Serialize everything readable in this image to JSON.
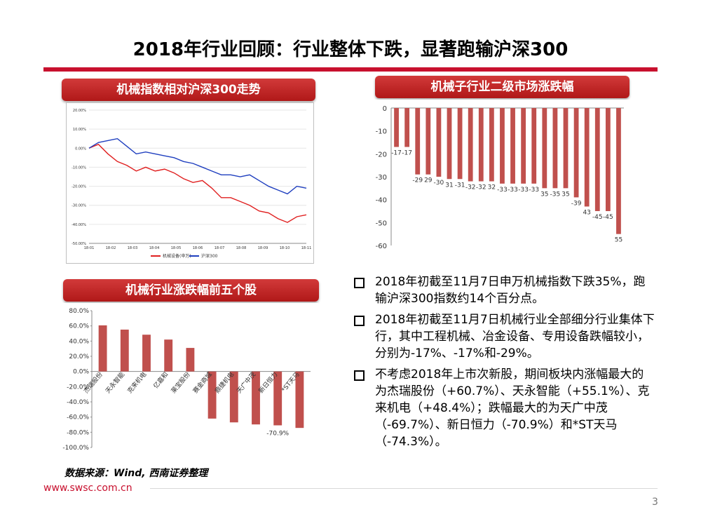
{
  "title": "2018年行业回顾：行业整体下跌，显著跑输沪深300",
  "panels": {
    "index_trend": "机械指数相对沪深300走势",
    "sub_industry": "机械子行业二级市场涨跌幅",
    "top_stocks": "机械行业涨跌幅前五个股"
  },
  "bullets": [
    "2018年初截至11月7日申万机械指数下跌35%，跑输沪深300指数约14个百分点。",
    "2018年初截至11月7日机械行业全部细分行业集体下行，其中工程机械、冶金设备、专用设备跌幅较小，分别为-17%、-17%和-29%。",
    "不考虑2018年上市次新股，期间板块内涨幅最大的为杰瑞股份（+60.7%）、天永智能（+55.1%）、克来机电（+48.4%）；跌幅最大的为天广中茂（-69.7%）、新日恒力（-70.9%）和*ST天马（-74.3%）。"
  ],
  "source": "数据来源：Wind, 西南证券整理",
  "footer": {
    "url": "www.swsc.com.cn",
    "page": "3"
  },
  "colors": {
    "accent": "#c8102e",
    "bar": "#c0504d",
    "line_blue": "#1f3fbf"
  },
  "chart_data": [
    {
      "type": "line",
      "x_ticks": [
        "18-01",
        "18-02",
        "18-03",
        "18-04",
        "18-05",
        "18-06",
        "18-07",
        "18-08",
        "18-09",
        "18-10",
        "18-11"
      ],
      "y_ticks": [
        "20.00%",
        "10.00%",
        "0.00%",
        "-10.00%",
        "-20.00%",
        "-30.00%",
        "-40.00%",
        "-50.00%"
      ],
      "ylim": [
        -50,
        20
      ],
      "legend": "bottom",
      "series": [
        {
          "name": "机械设备(申万)",
          "color": "#e02020",
          "values": [
            0,
            2,
            -3,
            -7,
            -9,
            -12,
            -10,
            -12,
            -11,
            -13,
            -16,
            -18,
            -17,
            -21,
            -26,
            -26,
            -28,
            -30,
            -33,
            -34,
            -37,
            -39,
            -36,
            -35
          ]
        },
        {
          "name": "沪深300",
          "color": "#1f3fbf",
          "values": [
            0,
            3,
            4,
            5,
            1,
            -3,
            -2,
            -3,
            -4,
            -5,
            -7,
            -8,
            -10,
            -12,
            -14,
            -14,
            -15,
            -14,
            -17,
            -20,
            -22,
            -24,
            -20,
            -21
          ]
        }
      ]
    },
    {
      "type": "bar",
      "y_ticks": [
        "0",
        "-10",
        "-20",
        "-30",
        "-40",
        "-50",
        "-60"
      ],
      "ylim": [
        -60,
        0
      ],
      "values": [
        -17,
        -17,
        -29,
        -29,
        -30,
        -31,
        -31,
        -32,
        -32,
        -32,
        -33,
        -33,
        -33,
        -33,
        -35,
        -35,
        -35,
        -39,
        -43,
        -45,
        -45,
        -55
      ],
      "value_labels": [
        "-17",
        "-17",
        "-29",
        "29",
        "-30",
        "31",
        "-31",
        "-32",
        "-32",
        "32",
        "-33",
        "-33",
        "-33",
        "-33",
        "35",
        "-35",
        "35",
        "-39",
        "43",
        "-45",
        "-45",
        "55"
      ]
    },
    {
      "type": "bar",
      "categories": [
        "杰瑞股份",
        "天永智能",
        "克来机电",
        "亿嘉和",
        "莱宝股份",
        "赛金商城",
        "鼎捷机电",
        "天广中茂",
        "新日恒力",
        "*ST天马"
      ],
      "values": [
        60.7,
        55.1,
        48.4,
        42,
        31,
        -62,
        -67,
        -69.7,
        -70.9,
        -74.3
      ],
      "y_ticks": [
        "80.0%",
        "60.0%",
        "40.0%",
        "20.0%",
        "0.0%",
        "-20.0%",
        "-40.0%",
        "-60.0%",
        "-80.0%",
        "-100.0%"
      ],
      "ylim": [
        -100,
        80
      ],
      "annotations": [
        "-70.9%"
      ]
    }
  ]
}
